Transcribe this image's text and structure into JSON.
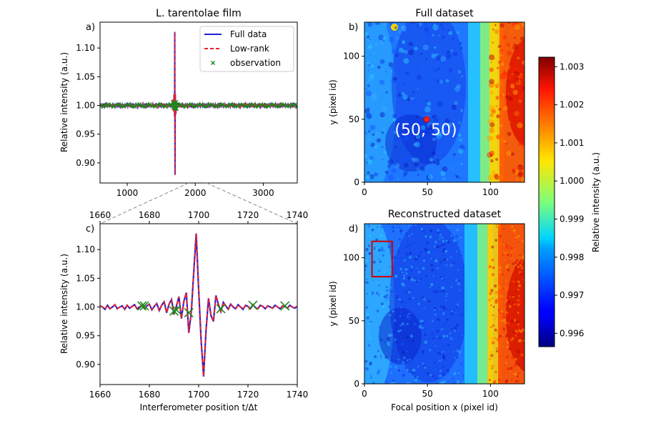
{
  "chart_data": [
    {
      "panel_label": "a)",
      "type": "line",
      "title": "L. tarentolae film",
      "xlabel": "",
      "ylabel": "Relative intensity (a.u.)",
      "xlim": [
        600,
        3500
      ],
      "ylim": [
        0.865,
        1.145
      ],
      "xticks": [
        1000,
        2000,
        3000
      ],
      "yticks": [
        0.9,
        0.95,
        1.0,
        1.05,
        1.1
      ],
      "legend_position": "top-right",
      "series": [
        {
          "name": "Full data",
          "color": "#1f1fd6",
          "style": "solid"
        },
        {
          "name": "Low-rank",
          "color": "#e8202a",
          "style": "dashed"
        },
        {
          "name": "observation",
          "color": "#1a8a1a",
          "style": "x-marker"
        }
      ],
      "peak": {
        "x": 1700,
        "max": 1.128,
        "min": 0.879
      }
    },
    {
      "panel_label": "c)",
      "type": "line",
      "xlabel": "Interferometer position t/Δt",
      "ylabel": "Relative intensity (a.u.)",
      "xlim": [
        1660,
        1740
      ],
      "ylim": [
        0.865,
        1.145
      ],
      "xticks": [
        1660,
        1680,
        1700,
        1720,
        1740
      ],
      "yticks": [
        0.9,
        0.95,
        1.0,
        1.05,
        1.1
      ],
      "top_xticks": [
        1660,
        1680,
        1700,
        1720,
        1740
      ],
      "signal": {
        "x": [
          1660,
          1661,
          1662,
          1663,
          1664,
          1665,
          1666,
          1667,
          1668,
          1669,
          1670,
          1671,
          1672,
          1673,
          1674,
          1675,
          1676,
          1677,
          1678,
          1679,
          1680,
          1681,
          1682,
          1683,
          1684,
          1685,
          1686,
          1687,
          1688,
          1689,
          1690,
          1691,
          1692,
          1693,
          1694,
          1695,
          1696,
          1697,
          1698,
          1699,
          1700,
          1701,
          1702,
          1703,
          1704,
          1705,
          1706,
          1707,
          1708,
          1709,
          1710,
          1711,
          1712,
          1713,
          1714,
          1715,
          1716,
          1717,
          1718,
          1719,
          1720,
          1721,
          1722,
          1723,
          1724,
          1725,
          1726,
          1727,
          1728,
          1729,
          1730,
          1731,
          1732,
          1733,
          1734,
          1735,
          1736,
          1737,
          1738,
          1739,
          1740
        ],
        "y": [
          1.002,
          1.0,
          0.996,
          1.003,
          0.997,
          1.0,
          1.004,
          0.997,
          1.0,
          1.002,
          0.996,
          1.003,
          0.998,
          1.001,
          1.004,
          0.997,
          1.0,
          1.003,
          0.997,
          1.002,
          1.005,
          0.995,
          1.001,
          1.006,
          0.994,
          1.003,
          1.009,
          0.99,
          1.005,
          1.013,
          0.987,
          1.002,
          1.018,
          0.98,
          1.01,
          1.025,
          0.955,
          0.99,
          1.06,
          1.128,
          1.03,
          0.942,
          0.879,
          0.96,
          1.015,
          0.985,
          0.975,
          1.02,
          1.005,
          0.992,
          1.008,
          1.002,
          0.996,
          1.005,
          1.0,
          0.997,
          1.004,
          1.0,
          0.996,
          1.003,
          1.001,
          0.997,
          1.004,
          0.999,
          0.997,
          1.003,
          1.001,
          0.997,
          1.002,
          1.0,
          0.998,
          1.003,
          1.0,
          0.997,
          1.002,
          1.001,
          0.998,
          1.003,
          1.0,
          0.998,
          1.001
        ]
      },
      "observations": {
        "x": [
          1677,
          1678,
          1690,
          1691,
          1696,
          1709,
          1722,
          1735
        ],
        "y": [
          1.002,
          1.002,
          0.993,
          0.995,
          0.99,
          0.997,
          1.003,
          1.002
        ]
      }
    },
    {
      "panel_label": "b)",
      "type": "heatmap",
      "title": "Full dataset",
      "xlabel": "",
      "ylabel": "y (pixel id)",
      "xlim": [
        0,
        127
      ],
      "ylim": [
        0,
        127
      ],
      "xticks": [
        0,
        50,
        100
      ],
      "yticks": [
        0,
        50,
        100
      ],
      "annotation": {
        "text": "(50, 50)",
        "x": 50,
        "y": 50
      }
    },
    {
      "panel_label": "d)",
      "type": "heatmap",
      "title": "Reconstructed dataset",
      "xlabel": "Focal position x (pixel id)",
      "ylabel": "y (pixel id)",
      "xlim": [
        0,
        127
      ],
      "ylim": [
        0,
        127
      ],
      "xticks": [
        0,
        50,
        100
      ],
      "yticks": [
        0,
        50,
        100
      ],
      "highlight_box": {
        "x0": 6,
        "x1": 22,
        "y0": 85,
        "y1": 113
      }
    },
    {
      "type": "colorbar",
      "label": "Relative intensity (a.u.)",
      "range": [
        0.99565,
        1.00325
      ],
      "ticks": [
        "0.996",
        "0.997",
        "0.998",
        "0.999",
        "1.000",
        "1.001",
        "1.002",
        "1.003"
      ],
      "colormap": "jet"
    }
  ]
}
